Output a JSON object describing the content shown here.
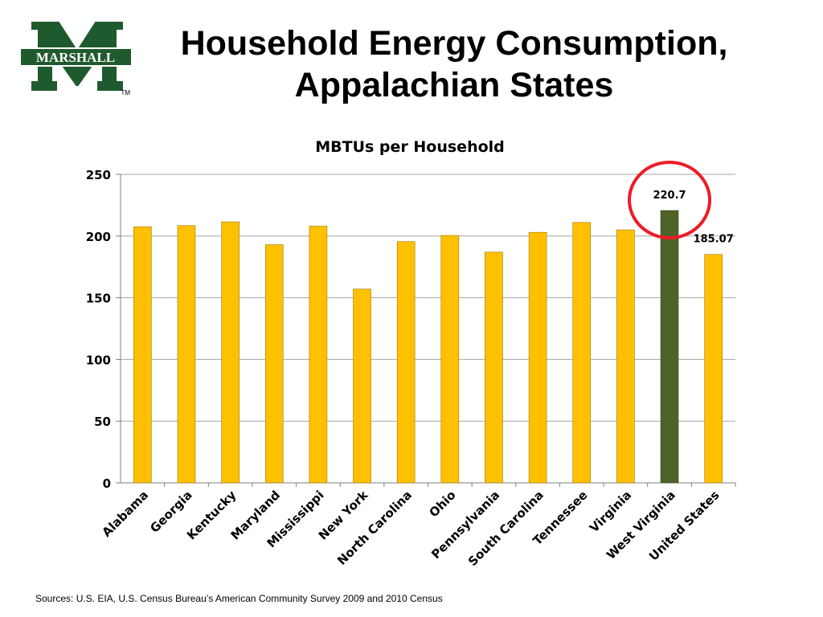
{
  "slide": {
    "title_line1": "Household Energy Consumption,",
    "title_line2": "Appalachian States",
    "sources": "Sources: U.S. EIA, U.S. Census Bureau’s American Community Survey 2009 and 2010 Census"
  },
  "logo": {
    "text": "MARSHALL",
    "trademark": "TM",
    "green": "#1f5a2e"
  },
  "colors": {
    "bar": "#ffc000",
    "bar_outline": "#9c7a00",
    "highlight_bar": "#4f6228",
    "highlight_circle": "#ee1c25",
    "grid": "#a6a6a6"
  },
  "chart_data": {
    "type": "bar",
    "title": "MBTUs per Household",
    "categories": [
      "Alabama",
      "Georgia",
      "Kentucky",
      "Maryland",
      "Mississippi",
      "New York",
      "North Carolina",
      "Ohio",
      "Pennsylvania",
      "South Carolina",
      "Tennessee",
      "Virginia",
      "West Virginia",
      "United States"
    ],
    "values": [
      207.5,
      208.5,
      211.5,
      193,
      208,
      157,
      195.5,
      200.5,
      187,
      203,
      211,
      205,
      220.7,
      185.07
    ],
    "data_labels": [
      {
        "category": "West Virginia",
        "text": "220.7"
      },
      {
        "category": "United States",
        "text": "185.07"
      }
    ],
    "highlighted": "West Virginia",
    "ylim": [
      0,
      250
    ],
    "yticks": [
      0,
      50,
      100,
      150,
      200,
      250
    ],
    "grid": true,
    "legend": "none",
    "xlabel": "",
    "ylabel": ""
  }
}
